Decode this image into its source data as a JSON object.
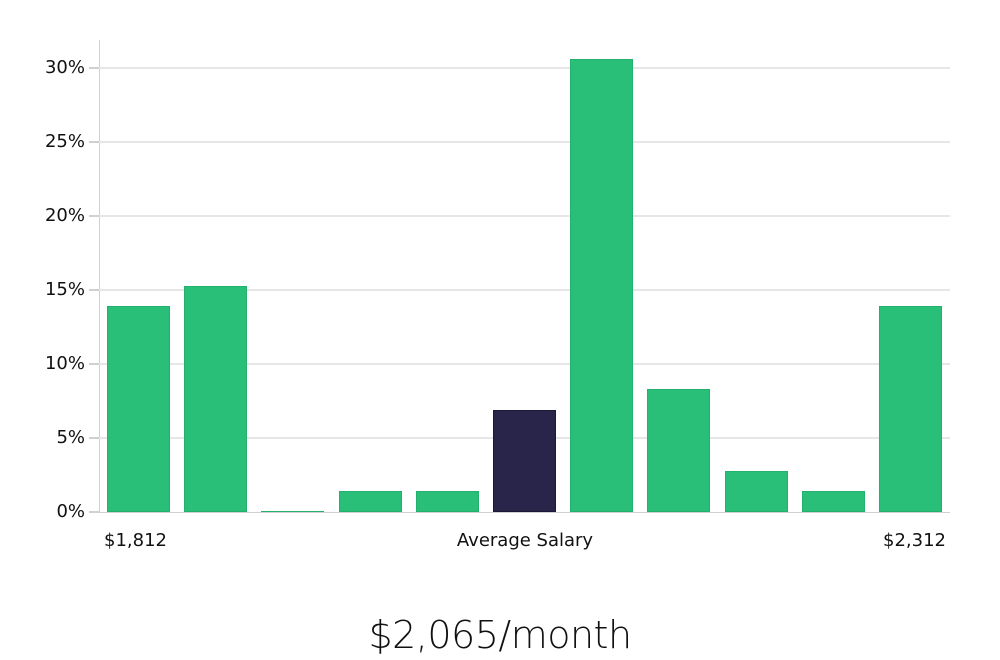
{
  "chart_data": {
    "type": "bar",
    "title": "",
    "xlabel": "Average Salary",
    "ylabel": "",
    "ylim": [
      0,
      32
    ],
    "yticks": [
      "0%",
      "5%",
      "10%",
      "15%",
      "20%",
      "25%",
      "30%"
    ],
    "x_range_labels": {
      "min": "$1,812",
      "center": "Average Salary",
      "max": "$2,312"
    },
    "categories": [
      "bin1",
      "bin2",
      "bin3",
      "bin4",
      "bin5",
      "bin6",
      "bin7",
      "bin8",
      "bin9",
      "bin10",
      "bin11"
    ],
    "values": [
      13.9,
      15.3,
      0.1,
      1.4,
      1.4,
      6.9,
      30.6,
      8.3,
      2.8,
      1.4,
      13.9
    ],
    "highlight_index": 5,
    "colors": {
      "bar": "#2abf78",
      "highlight": "#28244a",
      "grid": "#e6e6e6"
    },
    "grid": true,
    "legend": null
  },
  "labels": {
    "x_min": "$1,812",
    "x_center": "Average Salary",
    "x_max": "$2,312",
    "summary": "$2,065/month"
  },
  "yticks": [
    "0%",
    "5%",
    "10%",
    "15%",
    "20%",
    "25%",
    "30%"
  ]
}
